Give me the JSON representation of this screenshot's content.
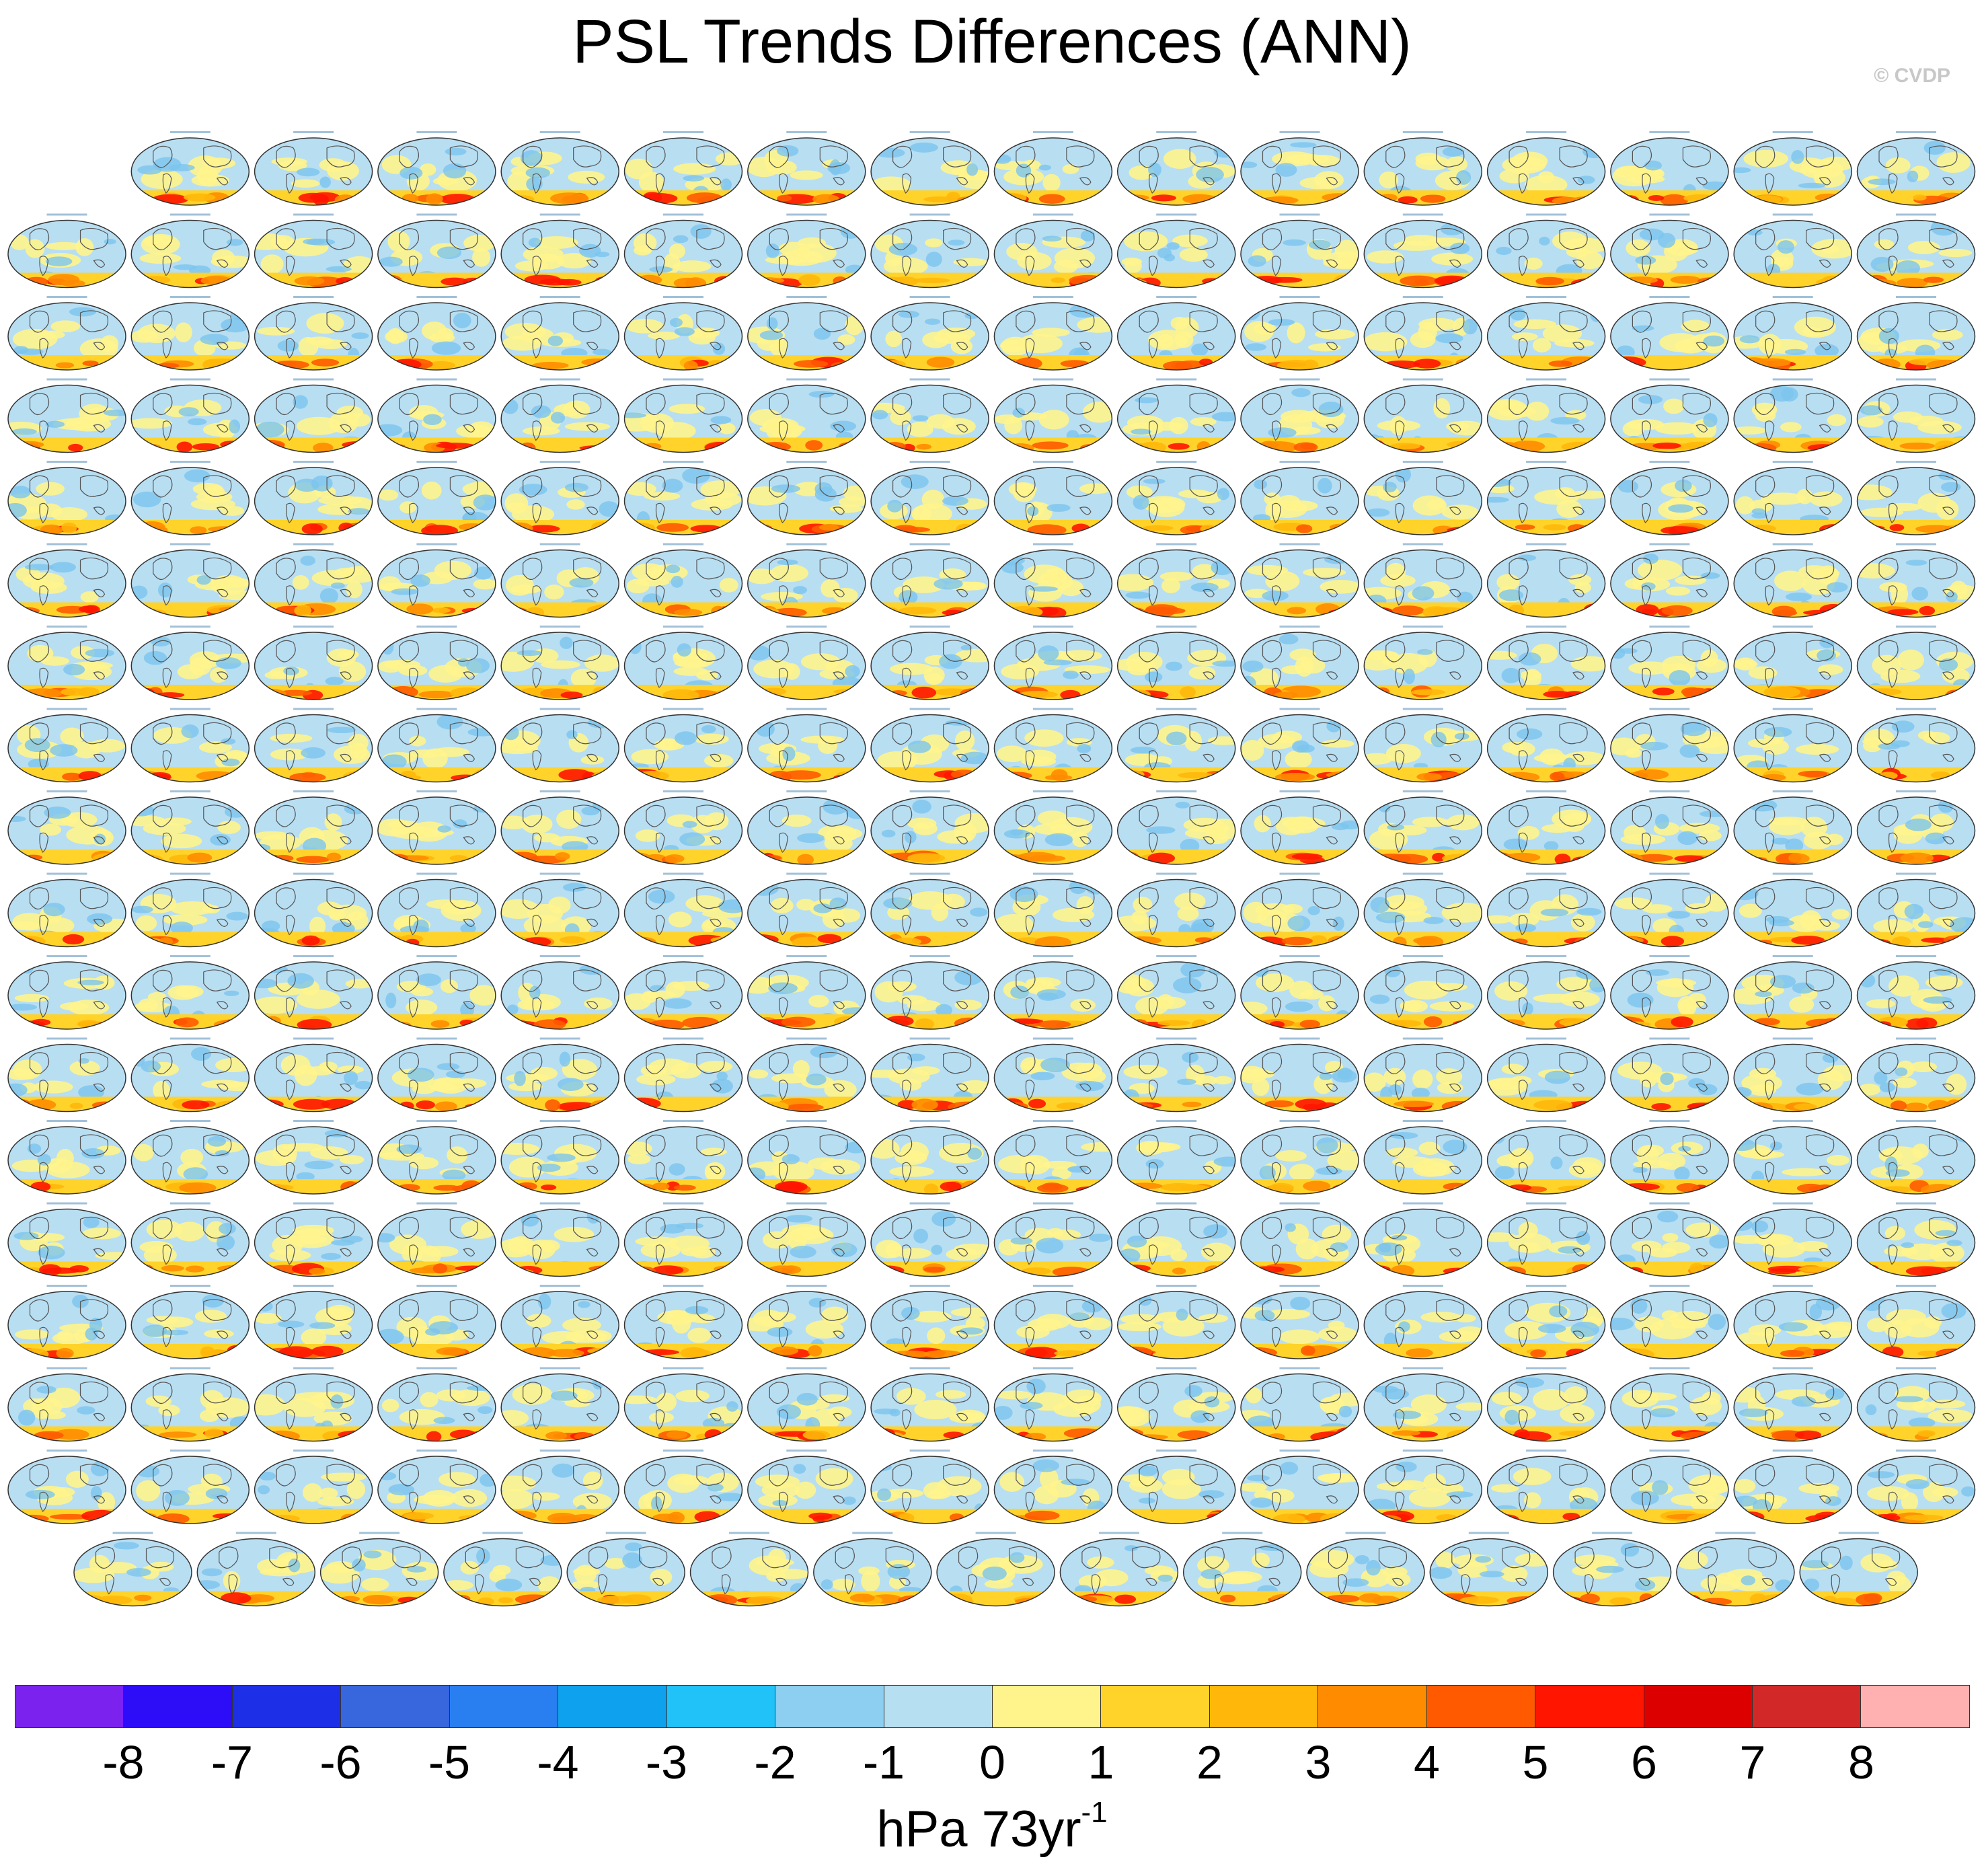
{
  "title": "PSL Trends Differences (ANN)",
  "copyright": "© CVDP",
  "chart_data": {
    "type": "heatmap",
    "title": "PSL Trends Differences (ANN)",
    "description_type": "grid of global map panels (model minus ERA5 PSL trend differences)",
    "panel_rows": [
      15,
      16,
      16,
      16,
      16,
      16,
      16,
      16,
      16,
      16,
      16,
      16,
      16,
      16,
      16,
      16,
      16,
      15
    ],
    "panel_count": 286,
    "first_panel_label": "ERA5 - ERA5",
    "colorbar": {
      "levels": [
        -8,
        -7,
        -6,
        -5,
        -4,
        -3,
        -2,
        -1,
        0,
        1,
        2,
        3,
        4,
        5,
        6,
        7,
        8
      ],
      "tick_labels": [
        "-8",
        "-7",
        "-6",
        "-5",
        "-4",
        "-3",
        "-2",
        "-1",
        "0",
        "1",
        "2",
        "3",
        "4",
        "5",
        "6",
        "7",
        "8"
      ],
      "colors": [
        "#7b22ee",
        "#2d0cf8",
        "#1e2fe8",
        "#3866dc",
        "#2a7ff0",
        "#0ea2ee",
        "#20c2f8",
        "#8ccff0",
        "#b6e0f2",
        "#fff48c",
        "#ffd32a",
        "#ffb80a",
        "#ff8c00",
        "#ff5a00",
        "#ff1500",
        "#dc0000",
        "#d22828",
        "#ffb1b1"
      ],
      "units_main": "hPa 73yr",
      "units_exponent": "-1"
    }
  }
}
